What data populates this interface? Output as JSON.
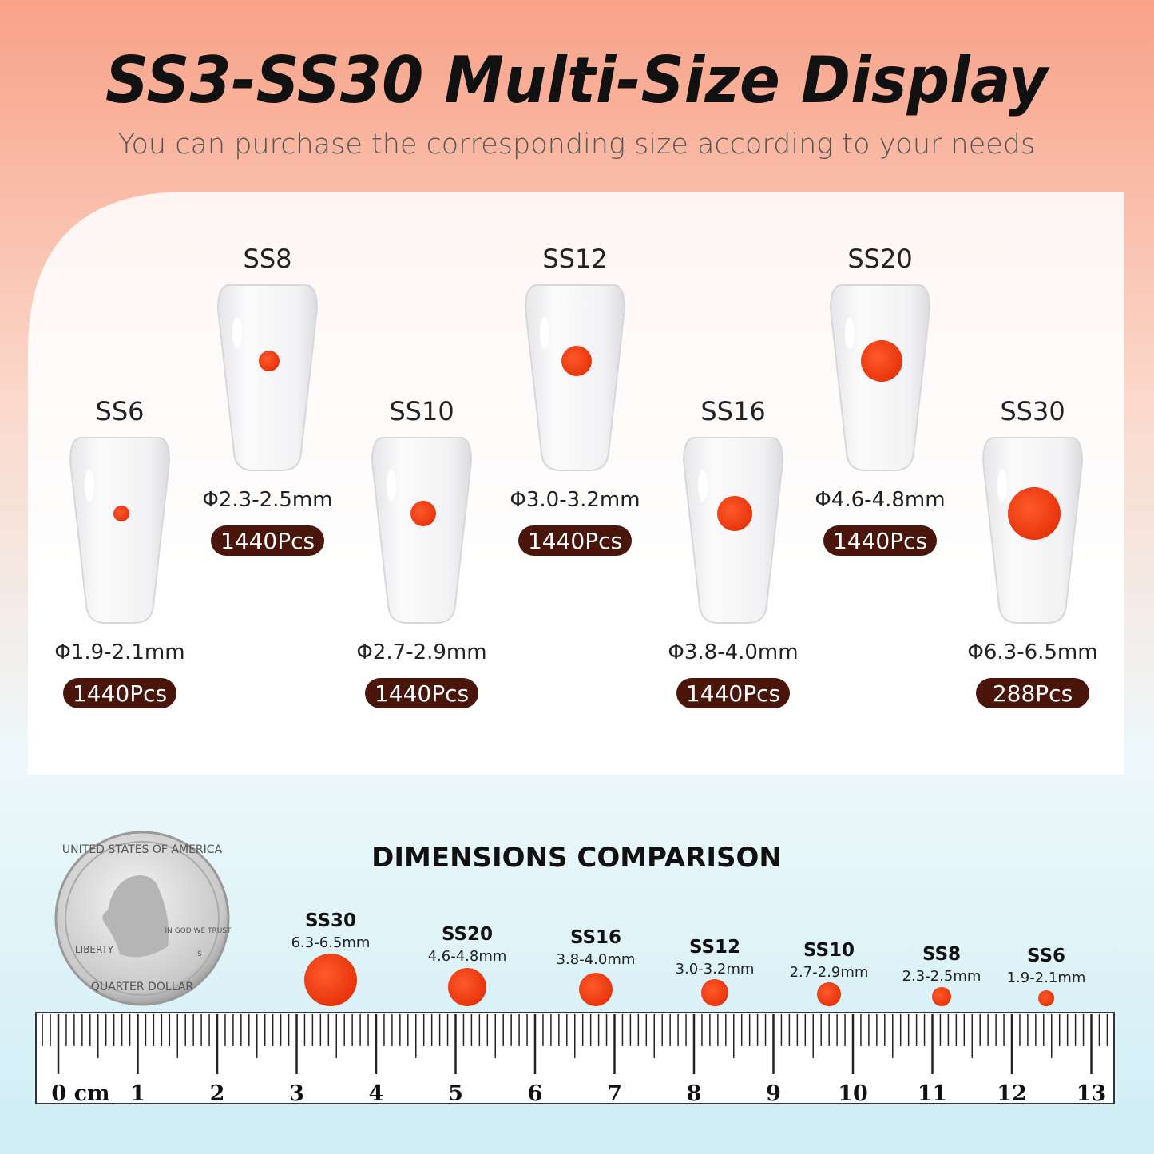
{
  "header": {
    "title": "SS3-SS30 Multi-Size Display",
    "subtitle": "You can purchase the corresponding size according to your needs"
  },
  "sizes": [
    {
      "name": "SS6",
      "diameter": "Φ1.9-2.1mm",
      "quantity": "1440Pcs"
    },
    {
      "name": "SS8",
      "diameter": "Φ2.3-2.5mm",
      "quantity": "1440Pcs"
    },
    {
      "name": "SS10",
      "diameter": "Φ2.7-2.9mm",
      "quantity": "1440Pcs"
    },
    {
      "name": "SS12",
      "diameter": "Φ3.0-3.2mm",
      "quantity": "1440Pcs"
    },
    {
      "name": "SS16",
      "diameter": "Φ3.8-4.0mm",
      "quantity": "1440Pcs"
    },
    {
      "name": "SS20",
      "diameter": "Φ4.6-4.8mm",
      "quantity": "1440Pcs"
    },
    {
      "name": "SS30",
      "diameter": "Φ6.3-6.5mm",
      "quantity": "288Pcs"
    }
  ],
  "comparison": {
    "title": "DIMENSIONS COMPARISON",
    "items": [
      {
        "name": "SS30",
        "range": "6.3-6.5mm"
      },
      {
        "name": "SS20",
        "range": "4.6-4.8mm"
      },
      {
        "name": "SS16",
        "range": "3.8-4.0mm"
      },
      {
        "name": "SS12",
        "range": "3.0-3.2mm"
      },
      {
        "name": "SS10",
        "range": "2.7-2.9mm"
      },
      {
        "name": "SS8",
        "range": "2.3-2.5mm"
      },
      {
        "name": "SS6",
        "range": "1.9-2.1mm"
      }
    ]
  },
  "ruler": {
    "labels": [
      "0 cm",
      "1",
      "2",
      "3",
      "4",
      "5",
      "6",
      "7",
      "8",
      "9",
      "10",
      "11",
      "12",
      "13"
    ]
  },
  "coin": {
    "top": "UNITED STATES OF AMERICA",
    "liberty": "LIBERTY",
    "motto": "IN GOD WE TRUST",
    "bottom": "QUARTER DOLLAR",
    "mint": "S"
  }
}
